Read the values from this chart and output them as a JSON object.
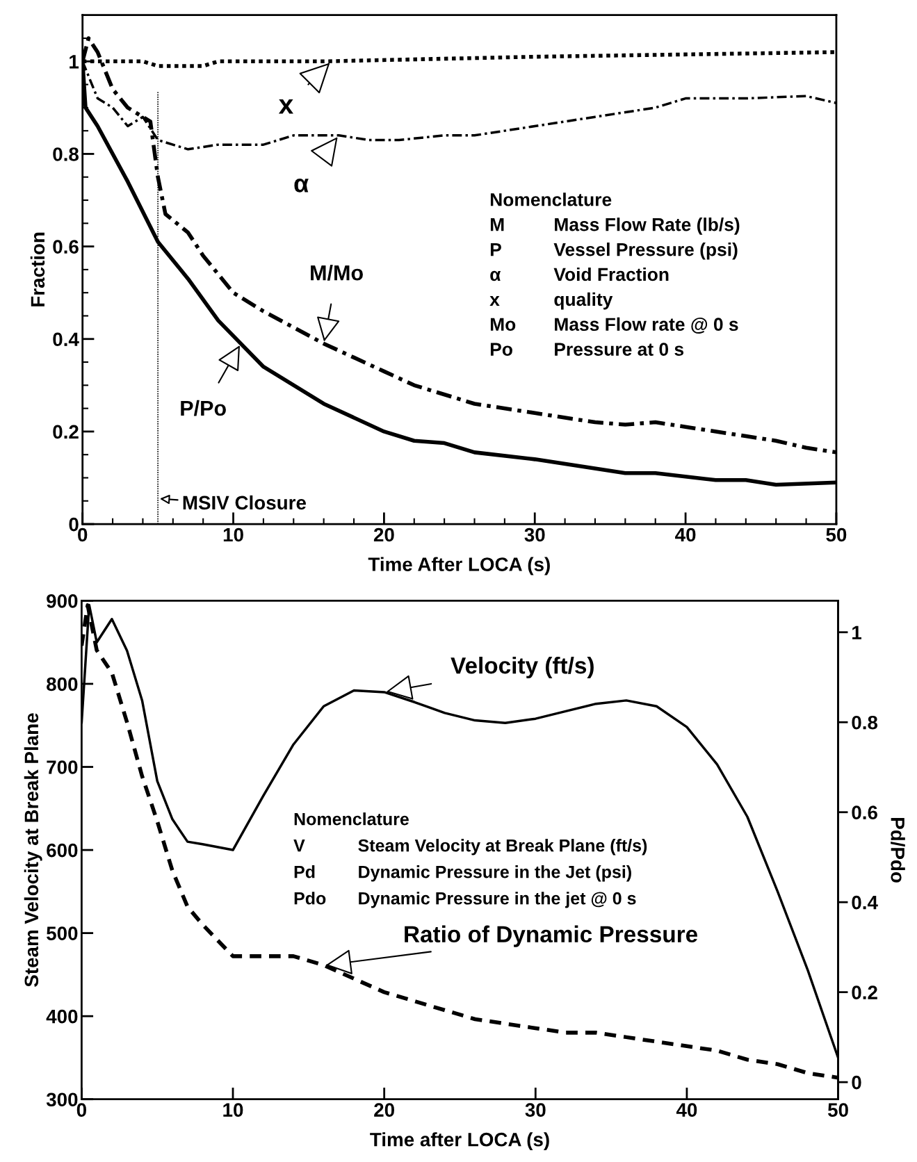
{
  "chart_data": [
    {
      "type": "line",
      "xlabel": "Time After LOCA (s)",
      "ylabel": "Fraction",
      "xlim": [
        0,
        50
      ],
      "ylim": [
        0,
        1.1
      ],
      "xticks": [
        0,
        {
          "value": 2,
          "label": null
        },
        {
          "value": 4,
          "label": null
        },
        {
          "value": 6,
          "label": null
        },
        {
          "value": 8,
          "label": null
        },
        10,
        {
          "value": 12,
          "label": null
        },
        {
          "value": 14,
          "label": null
        },
        {
          "value": 16,
          "label": null
        },
        {
          "value": 18,
          "label": null
        },
        20,
        {
          "value": 22,
          "label": null
        },
        {
          "value": 24,
          "label": null
        },
        {
          "value": 26,
          "label": null
        },
        {
          "value": 28,
          "label": null
        },
        30,
        {
          "value": 32,
          "label": null
        },
        {
          "value": 34,
          "label": null
        },
        {
          "value": 36,
          "label": null
        },
        {
          "value": 38,
          "label": null
        },
        40,
        {
          "value": 42,
          "label": null
        },
        {
          "value": 44,
          "label": null
        },
        {
          "value": 46,
          "label": null
        },
        {
          "value": 48,
          "label": null
        },
        50
      ],
      "yticks": [
        0,
        {
          "value": 0.05,
          "label": null
        },
        {
          "value": 0.1,
          "label": null
        },
        {
          "value": 0.15,
          "label": null
        },
        0.2,
        {
          "value": 0.25,
          "label": null
        },
        {
          "value": 0.3,
          "label": null
        },
        {
          "value": 0.35,
          "label": null
        },
        0.4,
        {
          "value": 0.45,
          "label": null
        },
        {
          "value": 0.5,
          "label": null
        },
        {
          "value": 0.55,
          "label": null
        },
        0.6,
        {
          "value": 0.65,
          "label": null
        },
        {
          "value": 0.7,
          "label": null
        },
        {
          "value": 0.75,
          "label": null
        },
        0.8,
        {
          "value": 0.85,
          "label": null
        },
        {
          "value": 0.9,
          "label": null
        },
        {
          "value": 0.95,
          "label": null
        },
        1,
        {
          "value": 1.05,
          "label": null
        }
      ],
      "grid": false,
      "legend": false,
      "series": [
        {
          "color": "#000000",
          "line_style": "solid",
          "x": [
            0,
            0.2,
            1,
            3,
            5,
            7,
            9,
            12,
            16,
            20,
            22,
            24,
            26,
            30,
            36,
            38,
            42,
            44,
            46,
            50
          ],
          "values": [
            1.0,
            0.9,
            0.86,
            0.74,
            0.61,
            0.53,
            0.44,
            0.34,
            0.26,
            0.2,
            0.18,
            0.175,
            0.155,
            0.14,
            0.11,
            0.11,
            0.095,
            0.095,
            0.085,
            0.09
          ]
        },
        {
          "color": "#000000",
          "line_style": "dashdot",
          "x": [
            0,
            0.4,
            1,
            2,
            3,
            4.5,
            5,
            5.5,
            7,
            8,
            10,
            12,
            16,
            20,
            22,
            26,
            30,
            34,
            36,
            38,
            40,
            44,
            46,
            48,
            50
          ],
          "values": [
            1.0,
            1.05,
            1.02,
            0.94,
            0.9,
            0.87,
            0.75,
            0.67,
            0.63,
            0.58,
            0.5,
            0.46,
            0.39,
            0.33,
            0.3,
            0.26,
            0.24,
            0.22,
            0.215,
            0.22,
            0.21,
            0.19,
            0.18,
            0.165,
            0.155
          ]
        },
        {
          "color": "#000000",
          "line_style": "dashdot",
          "x": [
            0,
            1,
            2,
            3,
            4,
            5,
            7,
            9,
            12,
            14,
            17,
            19,
            21,
            24,
            26,
            30,
            34,
            38,
            40,
            44,
            48,
            50
          ],
          "values": [
            1.0,
            0.92,
            0.9,
            0.86,
            0.88,
            0.83,
            0.81,
            0.82,
            0.82,
            0.84,
            0.84,
            0.83,
            0.83,
            0.84,
            0.84,
            0.86,
            0.88,
            0.9,
            0.92,
            0.92,
            0.925,
            0.91
          ]
        },
        {
          "color": "#000000",
          "line_style": "dotted",
          "x": [
            0,
            4,
            5,
            8,
            9,
            16,
            30,
            50
          ],
          "values": [
            1.0,
            1.0,
            0.99,
            0.99,
            1.0,
            1.0,
            1.01,
            1.02
          ]
        }
      ],
      "ref_lines": [
        {
          "axis": "x",
          "value": 5,
          "label": "MSIV Closure",
          "line_style": "dotted",
          "color": "#000000"
        }
      ],
      "annotations": [
        {
          "text": "x",
          "x": 16.5,
          "y": 1.0
        },
        {
          "text": "α",
          "x": 17,
          "y": 0.84
        },
        {
          "text": "M/Mo",
          "x": 16,
          "y": 0.39
        },
        {
          "text": "P/Po",
          "x": 10.5,
          "y": 0.39
        },
        "Nomenclature",
        "M Mass Flow Rate (lb/s)",
        "P Vessel Pressure (psi)",
        "α Void Fraction",
        "x quality",
        "Mo Mass Flow rate @ 0 s",
        "Po Pressure at 0 s"
      ]
    },
    {
      "type": "line",
      "xlabel": "Time after LOCA (s)",
      "ylabel": "Steam Velocity at Break Plane",
      "y2label": "Pd/Pdo",
      "xlim": [
        0,
        50
      ],
      "ylim": [
        300,
        900
      ],
      "y2lim": [
        -0.038,
        1.07
      ],
      "xticks": [
        0,
        10,
        20,
        30,
        40,
        50
      ],
      "yticks": [
        300,
        400,
        500,
        600,
        700,
        800,
        900
      ],
      "y2ticks": [
        0,
        0.2,
        0.4,
        0.6,
        0.8,
        1
      ],
      "grid": false,
      "legend": false,
      "series": [
        {
          "color": "#000000",
          "line_style": "dashed",
          "axis": "y2",
          "x": [
            0,
            0.4,
            1,
            2,
            3,
            4,
            5,
            6,
            7,
            8,
            10,
            12,
            14,
            16,
            18,
            20,
            22,
            24,
            26,
            28,
            30,
            32,
            34,
            36,
            38,
            40,
            42,
            44,
            46,
            48,
            50
          ],
          "values": [
            0.97,
            1.06,
            0.96,
            0.91,
            0.8,
            0.68,
            0.58,
            0.47,
            0.39,
            0.35,
            0.28,
            0.28,
            0.28,
            0.26,
            0.23,
            0.2,
            0.18,
            0.16,
            0.14,
            0.13,
            0.12,
            0.11,
            0.11,
            0.1,
            0.09,
            0.08,
            0.07,
            0.05,
            0.04,
            0.02,
            0.01
          ]
        },
        {
          "color": "#000000",
          "line_style": "solid",
          "x": [
            0,
            0.5,
            1,
            2,
            3,
            4,
            5,
            6,
            7,
            8,
            10,
            12,
            14,
            16,
            18,
            20,
            22,
            24,
            26,
            28,
            30,
            32,
            34,
            36,
            38,
            40,
            42,
            44,
            46,
            48,
            50
          ],
          "values": [
            753,
            895,
            850,
            878,
            840,
            780,
            683,
            637,
            610,
            607,
            600,
            665,
            727,
            773,
            792,
            790,
            778,
            765,
            756,
            753,
            758,
            767,
            776,
            780,
            773,
            748,
            703,
            640,
            550,
            455,
            350
          ]
        }
      ],
      "annotations": [
        {
          "text": "Velocity (ft/s)",
          "x": 20,
          "y": 790
        },
        {
          "text": "Ratio of Dynamic Pressure",
          "x": 16,
          "y": 461
        },
        "Nomenclature",
        "V Steam Velocity at Break Plane (ft/s)",
        "Pd Dynamic Pressure in the Jet (psi)",
        "Pdo Dynamic Pressure in the jet @ 0 s"
      ]
    }
  ]
}
